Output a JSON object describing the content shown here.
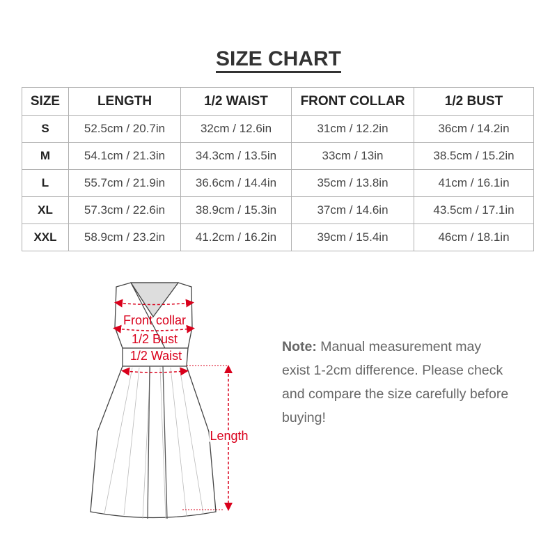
{
  "title": "SIZE CHART",
  "table": {
    "headers": [
      "SIZE",
      "LENGTH",
      "1/2 WAIST",
      "FRONT COLLAR",
      "1/2 BUST"
    ],
    "rows": [
      [
        "S",
        "52.5cm / 20.7in",
        "32cm / 12.6in",
        "31cm / 12.2in",
        "36cm / 14.2in"
      ],
      [
        "M",
        "54.1cm / 21.3in",
        "34.3cm / 13.5in",
        "33cm / 13in",
        "38.5cm / 15.2in"
      ],
      [
        "L",
        "55.7cm / 21.9in",
        "36.6cm / 14.4in",
        "35cm / 13.8in",
        "41cm / 16.1in"
      ],
      [
        "XL",
        "57.3cm / 22.6in",
        "38.9cm / 15.3in",
        "37cm / 14.6in",
        "43.5cm / 17.1in"
      ],
      [
        "XXL",
        "58.9cm / 23.2in",
        "41.2cm / 16.2in",
        "39cm / 15.4in",
        "46cm / 18.1in"
      ]
    ]
  },
  "diagram": {
    "labels": {
      "front_collar": "Front collar",
      "bust": "1/2 Bust",
      "waist": "1/2 Waist",
      "length": "Length"
    },
    "measure_color": "#d9001b"
  },
  "note": {
    "label": "Note:",
    "text": " Manual measurement may exist 1-2cm difference. Please check and compare the size carefully before buying!"
  }
}
